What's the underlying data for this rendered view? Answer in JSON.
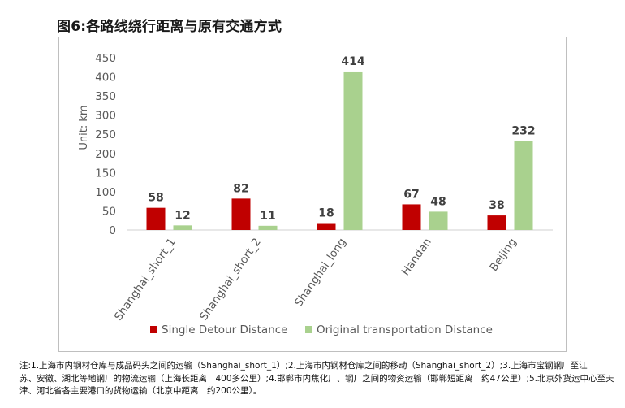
{
  "figure": {
    "title": "图6:各路线绕行距离与原有交通方式"
  },
  "chart_data": {
    "type": "bar",
    "title": "",
    "xlabel": "",
    "ylabel": "Unit: km",
    "ylim": [
      0,
      450
    ],
    "yticks": [
      "0",
      "50",
      "100",
      "150",
      "200",
      "250",
      "300",
      "350",
      "400",
      "450"
    ],
    "grid": false,
    "legend_position": "bottom",
    "categories": [
      "Shanghai_short_1",
      "Shanghai_short_2",
      "Shanghai_long",
      "Handan",
      "Beijing"
    ],
    "series": [
      {
        "name": "Single Detour Distance",
        "color": "#c00000",
        "values": [
          58,
          82,
          18,
          67,
          38
        ]
      },
      {
        "name": "Original transportation Distance",
        "color": "#a9d18e",
        "values": [
          12,
          11,
          414,
          48,
          232
        ]
      }
    ]
  },
  "footnote": {
    "lines": [
      "注:1.上海市内钢材仓库与成品码头之间的运输（Shanghai_short_1）;2.上海市内钢材仓库之间的移动（Shanghai_short_2）;3.上海市宝钢钢厂至江",
      "苏、安徽、湖北等地钢厂的物流运输（上海长距离　400多公里）;4.邯郸市内焦化厂、钢厂之间的物资运输（邯郸短距离　约47公里）;5.北京外货运中心至天",
      "津、河北省各主要港口的货物运输（北京中距离　约200公里）。"
    ]
  }
}
